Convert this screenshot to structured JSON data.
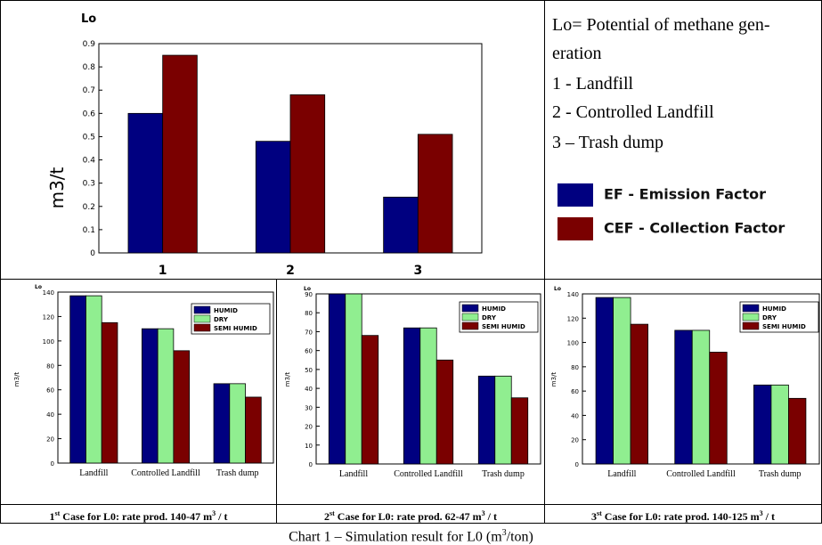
{
  "top_chart": {
    "chart_data": {
      "type": "bar",
      "title": "Lo",
      "ylabel": "m3/t",
      "categories": [
        "1",
        "2",
        "3"
      ],
      "series": [
        {
          "name": "EF - Emission Factor",
          "color": "#000080",
          "values": [
            0.6,
            0.48,
            0.24
          ]
        },
        {
          "name": "CEF - Collection Factor",
          "color": "#7a0000",
          "values": [
            0.85,
            0.68,
            0.51
          ]
        }
      ],
      "ylim": [
        0,
        0.9
      ],
      "yticks": [
        "0",
        "0.1",
        "0.2",
        "0.3",
        "0.4",
        "0.5",
        "0.6",
        "0.7",
        "0.8",
        "0.9"
      ]
    }
  },
  "legend_text": {
    "line1": "Lo= Potential of methane gen-",
    "line2": "eration",
    "line3": "1 - Landfill",
    "line4": "2 - Controlled Landfill",
    "line5": "3 – Trash dump",
    "ef_label": "EF - Emission Factor",
    "cef_label": "CEF - Collection Factor"
  },
  "small_charts": [
    {
      "chart_data": {
        "type": "bar",
        "title": "Lo",
        "ylabel": "m3/t",
        "categories": [
          "Landfill",
          "Controlled Landfill",
          "Trash dump"
        ],
        "series": [
          {
            "name": "HUMID",
            "color": "#000080",
            "values": [
              137,
              110,
              65
            ]
          },
          {
            "name": "DRY",
            "color": "#90ee90",
            "values": [
              137,
              110,
              65
            ]
          },
          {
            "name": "SEMI HUMID",
            "color": "#7a0000",
            "values": [
              115,
              92,
              54
            ]
          }
        ],
        "ylim": [
          0,
          140
        ],
        "yticks": [
          "0",
          "20",
          "40",
          "60",
          "80",
          "100",
          "120",
          "140"
        ]
      },
      "caption_prefix": "1",
      "caption_sup": "st",
      "caption_main": " Case for L0: rate prod. 140-47 m",
      "caption_sup2": "3",
      "caption_end": " / t"
    },
    {
      "chart_data": {
        "type": "bar",
        "title": "Lo",
        "ylabel": "m3/t",
        "categories": [
          "Landfill",
          "Controlled Landfill",
          "Trash dump"
        ],
        "series": [
          {
            "name": "HUMID",
            "color": "#000080",
            "values": [
              90,
              72,
              46.5
            ]
          },
          {
            "name": "DRY",
            "color": "#90ee90",
            "values": [
              90,
              72,
              46.5
            ]
          },
          {
            "name": "SEMI HUMID",
            "color": "#7a0000",
            "values": [
              68,
              55,
              35
            ]
          }
        ],
        "ylim": [
          0,
          90
        ],
        "yticks": [
          "0",
          "10",
          "20",
          "30",
          "40",
          "50",
          "60",
          "70",
          "80",
          "90"
        ]
      },
      "caption_prefix": "2",
      "caption_sup": "st",
      "caption_main": " Case for L0: rate prod. 62-47 m",
      "caption_sup2": "3",
      "caption_end": " / t"
    },
    {
      "chart_data": {
        "type": "bar",
        "title": "Lo",
        "ylabel": "m3/t",
        "categories": [
          "Landfill",
          "Controlled Landfill",
          "Trash dump"
        ],
        "series": [
          {
            "name": "HUMID",
            "color": "#000080",
            "values": [
              137,
              110,
              65
            ]
          },
          {
            "name": "DRY",
            "color": "#90ee90",
            "values": [
              137,
              110,
              65
            ]
          },
          {
            "name": "SEMI HUMID",
            "color": "#7a0000",
            "values": [
              115,
              92,
              54
            ]
          }
        ],
        "ylim": [
          0,
          140
        ],
        "yticks": [
          "0",
          "20",
          "40",
          "60",
          "80",
          "100",
          "120",
          "140"
        ]
      },
      "caption_prefix": "3",
      "caption_sup": "st",
      "caption_main": " Case for L0: rate prod. 140-125 m",
      "caption_sup2": "3",
      "caption_end": " / t"
    }
  ],
  "main_caption": {
    "pre": "Chart 1 – Simulation result for L0 (m",
    "sup": "3",
    "post": "/ton)"
  }
}
